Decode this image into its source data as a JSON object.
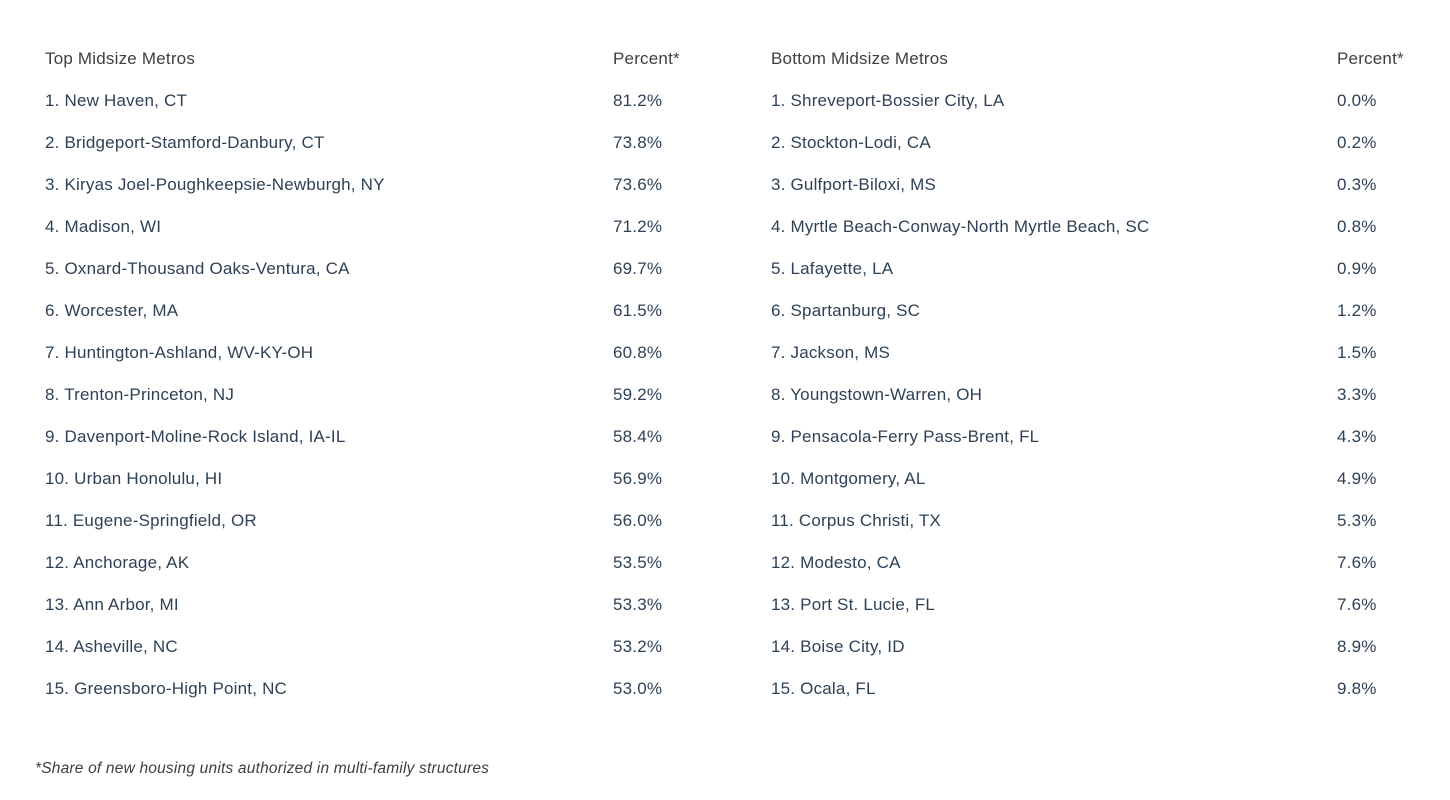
{
  "page": {
    "footnote": "*Share of new housing units authorized in multi-family structures"
  },
  "colors": {
    "background": "#ffffff",
    "header_text": "#3c4043",
    "row_text": "#2e4156",
    "footnote_text": "#3c4043"
  },
  "tables": [
    {
      "id": "top-midsize-metros",
      "header": {
        "metro": "Top Midsize Metros",
        "percent": "Percent*"
      },
      "rows": [
        {
          "label": "1. New Haven, CT",
          "percent": "81.2%"
        },
        {
          "label": "2. Bridgeport-Stamford-Danbury, CT",
          "percent": "73.8%"
        },
        {
          "label": "3. Kiryas Joel-Poughkeepsie-Newburgh, NY",
          "percent": "73.6%"
        },
        {
          "label": "4. Madison, WI",
          "percent": "71.2%"
        },
        {
          "label": "5. Oxnard-Thousand Oaks-Ventura, CA",
          "percent": "69.7%"
        },
        {
          "label": "6. Worcester, MA",
          "percent": "61.5%"
        },
        {
          "label": "7. Huntington-Ashland, WV-KY-OH",
          "percent": "60.8%"
        },
        {
          "label": "8. Trenton-Princeton, NJ",
          "percent": "59.2%"
        },
        {
          "label": "9. Davenport-Moline-Rock Island, IA-IL",
          "percent": "58.4%"
        },
        {
          "label": "10. Urban Honolulu, HI",
          "percent": "56.9%"
        },
        {
          "label": "11. Eugene-Springfield, OR",
          "percent": "56.0%"
        },
        {
          "label": "12. Anchorage, AK",
          "percent": "53.5%"
        },
        {
          "label": "13. Ann Arbor, MI",
          "percent": "53.3%"
        },
        {
          "label": "14. Asheville, NC",
          "percent": "53.2%"
        },
        {
          "label": "15. Greensboro-High Point, NC",
          "percent": "53.0%"
        }
      ]
    },
    {
      "id": "bottom-midsize-metros",
      "header": {
        "metro": "Bottom Midsize Metros",
        "percent": "Percent*"
      },
      "rows": [
        {
          "label": "1. Shreveport-Bossier City, LA",
          "percent": "0.0%"
        },
        {
          "label": "2. Stockton-Lodi, CA",
          "percent": "0.2%"
        },
        {
          "label": "3. Gulfport-Biloxi, MS",
          "percent": "0.3%"
        },
        {
          "label": "4. Myrtle Beach-Conway-North Myrtle Beach, SC",
          "percent": "0.8%"
        },
        {
          "label": "5. Lafayette, LA",
          "percent": "0.9%"
        },
        {
          "label": "6. Spartanburg, SC",
          "percent": "1.2%"
        },
        {
          "label": "7. Jackson, MS",
          "percent": "1.5%"
        },
        {
          "label": "8. Youngstown-Warren, OH",
          "percent": "3.3%"
        },
        {
          "label": "9. Pensacola-Ferry Pass-Brent, FL",
          "percent": "4.3%"
        },
        {
          "label": "10. Montgomery, AL",
          "percent": "4.9%"
        },
        {
          "label": "11. Corpus Christi, TX",
          "percent": "5.3%"
        },
        {
          "label": "12. Modesto, CA",
          "percent": "7.6%"
        },
        {
          "label": "13. Port St. Lucie, FL",
          "percent": "7.6%"
        },
        {
          "label": "14. Boise City, ID",
          "percent": "8.9%"
        },
        {
          "label": "15. Ocala, FL",
          "percent": "9.8%"
        }
      ]
    }
  ],
  "chart_data": [
    {
      "type": "table",
      "title": "Top Midsize Metros",
      "columns": [
        "Metro",
        "Percent*"
      ],
      "footnote": "*Share of new housing units authorized in multi-family structures",
      "rows": [
        {
          "rank": 1,
          "metro": "New Haven, CT",
          "percent": 81.2
        },
        {
          "rank": 2,
          "metro": "Bridgeport-Stamford-Danbury, CT",
          "percent": 73.8
        },
        {
          "rank": 3,
          "metro": "Kiryas Joel-Poughkeepsie-Newburgh, NY",
          "percent": 73.6
        },
        {
          "rank": 4,
          "metro": "Madison, WI",
          "percent": 71.2
        },
        {
          "rank": 5,
          "metro": "Oxnard-Thousand Oaks-Ventura, CA",
          "percent": 69.7
        },
        {
          "rank": 6,
          "metro": "Worcester, MA",
          "percent": 61.5
        },
        {
          "rank": 7,
          "metro": "Huntington-Ashland, WV-KY-OH",
          "percent": 60.8
        },
        {
          "rank": 8,
          "metro": "Trenton-Princeton, NJ",
          "percent": 59.2
        },
        {
          "rank": 9,
          "metro": "Davenport-Moline-Rock Island, IA-IL",
          "percent": 58.4
        },
        {
          "rank": 10,
          "metro": "Urban Honolulu, HI",
          "percent": 56.9
        },
        {
          "rank": 11,
          "metro": "Eugene-Springfield, OR",
          "percent": 56.0
        },
        {
          "rank": 12,
          "metro": "Anchorage, AK",
          "percent": 53.5
        },
        {
          "rank": 13,
          "metro": "Ann Arbor, MI",
          "percent": 53.3
        },
        {
          "rank": 14,
          "metro": "Asheville, NC",
          "percent": 53.2
        },
        {
          "rank": 15,
          "metro": "Greensboro-High Point, NC",
          "percent": 53.0
        }
      ]
    },
    {
      "type": "table",
      "title": "Bottom Midsize Metros",
      "columns": [
        "Metro",
        "Percent*"
      ],
      "footnote": "*Share of new housing units authorized in multi-family structures",
      "rows": [
        {
          "rank": 1,
          "metro": "Shreveport-Bossier City, LA",
          "percent": 0.0
        },
        {
          "rank": 2,
          "metro": "Stockton-Lodi, CA",
          "percent": 0.2
        },
        {
          "rank": 3,
          "metro": "Gulfport-Biloxi, MS",
          "percent": 0.3
        },
        {
          "rank": 4,
          "metro": "Myrtle Beach-Conway-North Myrtle Beach, SC",
          "percent": 0.8
        },
        {
          "rank": 5,
          "metro": "Lafayette, LA",
          "percent": 0.9
        },
        {
          "rank": 6,
          "metro": "Spartanburg, SC",
          "percent": 1.2
        },
        {
          "rank": 7,
          "metro": "Jackson, MS",
          "percent": 1.5
        },
        {
          "rank": 8,
          "metro": "Youngstown-Warren, OH",
          "percent": 3.3
        },
        {
          "rank": 9,
          "metro": "Pensacola-Ferry Pass-Brent, FL",
          "percent": 4.3
        },
        {
          "rank": 10,
          "metro": "Montgomery, AL",
          "percent": 4.9
        },
        {
          "rank": 11,
          "metro": "Corpus Christi, TX",
          "percent": 5.3
        },
        {
          "rank": 12,
          "metro": "Modesto, CA",
          "percent": 7.6
        },
        {
          "rank": 13,
          "metro": "Port St. Lucie, FL",
          "percent": 7.6
        },
        {
          "rank": 14,
          "metro": "Boise City, ID",
          "percent": 8.9
        },
        {
          "rank": 15,
          "metro": "Ocala, FL",
          "percent": 9.8
        }
      ]
    }
  ]
}
